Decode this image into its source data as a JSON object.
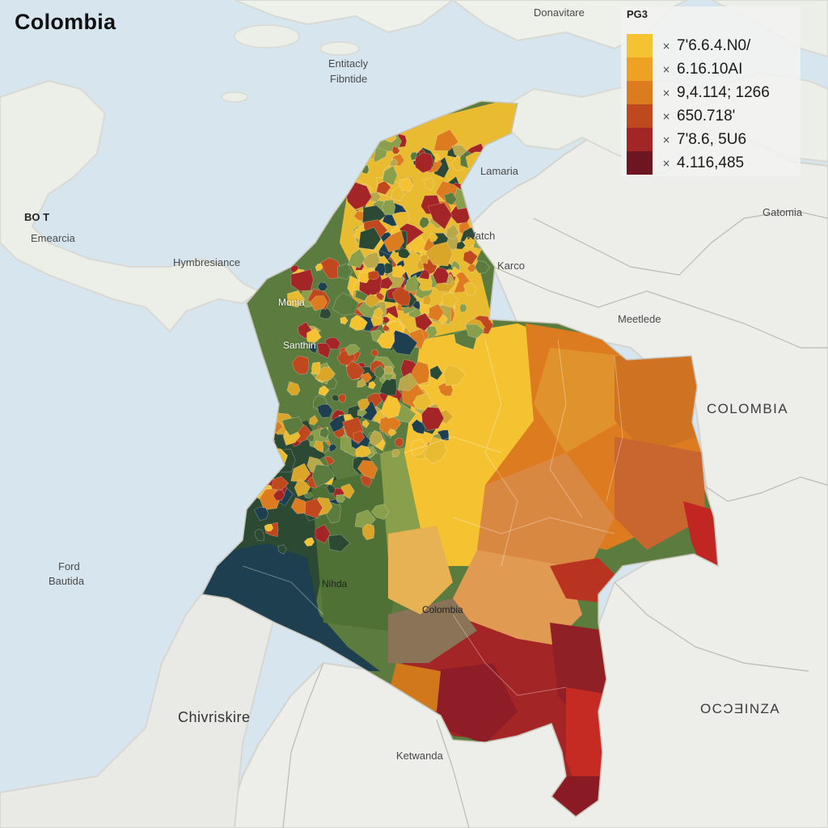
{
  "title": "Colombia",
  "legend": {
    "title": "PG3",
    "marker": "×",
    "items": [
      {
        "label": "7'6.6.4.N0/",
        "color": "#f5c331"
      },
      {
        "label": "6.16.10AI",
        "color": "#eea224"
      },
      {
        "label": "9,4.114; 1266",
        "color": "#dc7b1f"
      },
      {
        "label": "650.718'",
        "color": "#c0481f"
      },
      {
        "label": "7'8.6, 5U6",
        "color": "#a42525"
      },
      {
        "label": "4.116,485",
        "color": "#6d1520"
      }
    ]
  },
  "places": {
    "top_center": "Donavitare",
    "entitacly": "Entitacly",
    "fibntide": "Fibntide",
    "bot": "BO T",
    "emearcia": "Emearcia",
    "hymbresiance": "Hymbresiance",
    "lamaria": "Lamaria",
    "gatomia": "Gatomia",
    "watch": "Watch",
    "karco": "Karco",
    "meetlede": "Meetlede",
    "colombia_side": "COLOMBIA",
    "ford": "Ford",
    "bautida": "Bautida",
    "chivriskire": "Chivriskire",
    "ketwanda": "Ketwanda",
    "ocdinza": "OCƆƎINZA",
    "region_a": "Monia",
    "region_b": "Santhin",
    "region_c": "Nihda",
    "region_d": "Colombia"
  },
  "colors": {
    "sea": "#d7e5ee",
    "land": "#edeeea",
    "coast_relief": "#d9dad4",
    "dark_green": "#2c4a33",
    "mid_green": "#5b7c3e",
    "light_green": "#8a9f4c",
    "navy": "#1d3f4f",
    "yellow": "#f5c331",
    "orange": "#dc7b1f",
    "dark_red": "#8e1d27"
  }
}
